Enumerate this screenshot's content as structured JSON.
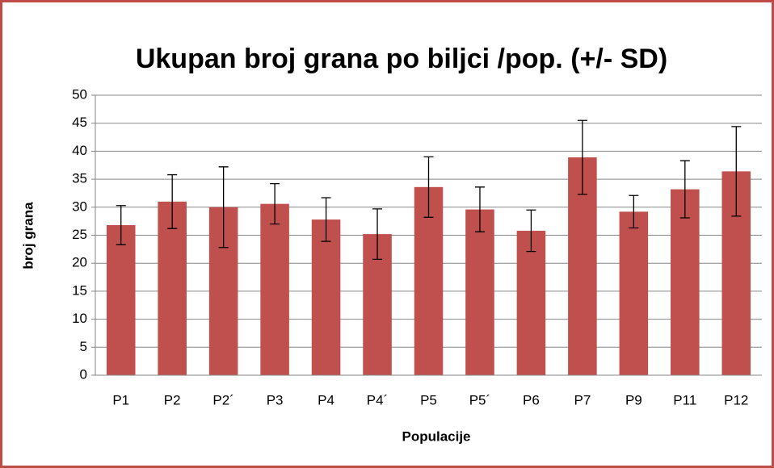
{
  "chart_data": {
    "type": "bar",
    "title": "Ukupan broj grana po biljci /pop. (+/- SD)",
    "x_label": "Populacije",
    "y_label": "broj grana",
    "categories": [
      "P1",
      "P2",
      "P2´",
      "P3",
      "P4",
      "P4´",
      "P5",
      "P5´",
      "P6",
      "P7",
      "P9",
      "P11",
      "P12"
    ],
    "values": [
      26.8,
      31.0,
      30.0,
      30.6,
      27.8,
      25.2,
      33.6,
      29.6,
      25.8,
      38.9,
      29.2,
      33.2,
      36.4
    ],
    "errors": [
      3.5,
      4.8,
      7.2,
      3.6,
      3.9,
      4.5,
      5.4,
      4.0,
      3.7,
      6.6,
      2.9,
      5.1,
      8.0
    ],
    "color": "#c0504d",
    "ylim": [
      0,
      50
    ],
    "yticks": [
      0,
      5,
      10,
      15,
      20,
      25,
      30,
      35,
      40,
      45,
      50
    ],
    "grid": true
  }
}
